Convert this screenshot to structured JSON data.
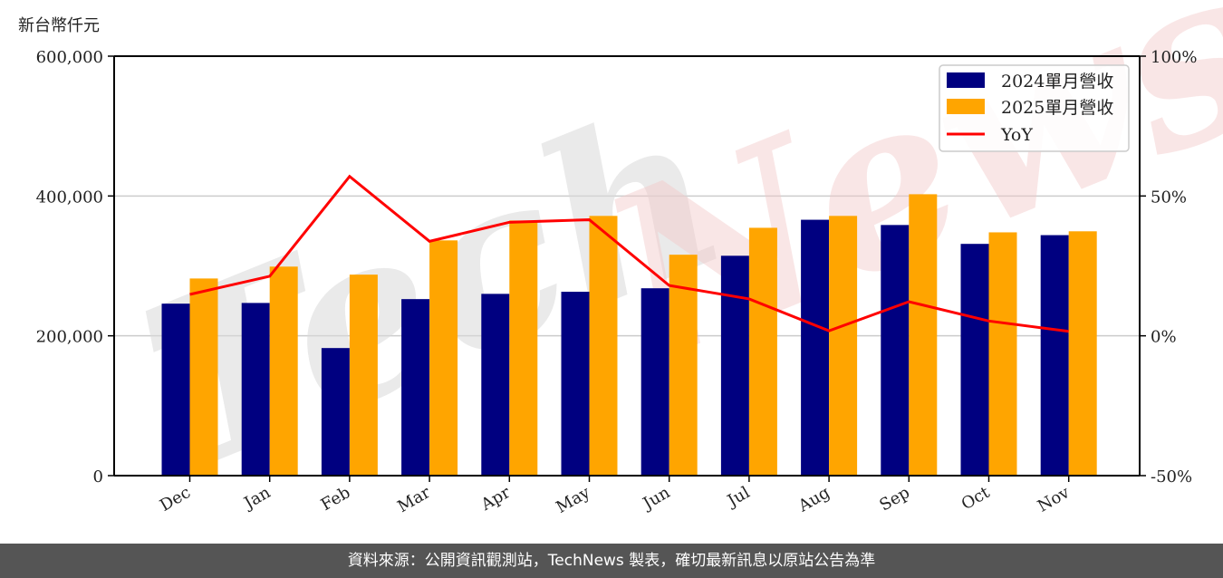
{
  "chart_data": {
    "type": "bar",
    "title": "",
    "unit_label": "新台幣仟元",
    "xlabel": "",
    "ylabel": "新台幣仟元",
    "categories": [
      "Dec",
      "Jan",
      "Feb",
      "Mar",
      "Apr",
      "May",
      "Jun",
      "Jul",
      "Aug",
      "Sep",
      "Oct",
      "Nov"
    ],
    "series": [
      {
        "name": "2024單月營收",
        "type": "bar",
        "axis": "left",
        "color": "#000080",
        "values": [
          246000,
          247000,
          182500,
          252500,
          260000,
          263000,
          268000,
          314500,
          366000,
          358500,
          331500,
          344000
        ]
      },
      {
        "name": "2025單月營收",
        "type": "bar",
        "axis": "left",
        "color": "#FFA500",
        "values": [
          282000,
          299000,
          287500,
          336500,
          365000,
          371500,
          316000,
          354500,
          371500,
          402500,
          348000,
          349500
        ]
      },
      {
        "name": "YoY",
        "type": "line",
        "axis": "right",
        "color": "#FF0000",
        "unit": "%",
        "values": [
          14.8,
          21.3,
          57.0,
          33.8,
          40.6,
          41.5,
          18.0,
          13.2,
          1.8,
          12.2,
          5.3,
          1.6
        ]
      }
    ],
    "ylim": [
      0,
      600000
    ],
    "y2lim": [
      -50,
      100
    ],
    "yticks": [
      0,
      200000,
      400000,
      600000
    ],
    "ytick_labels": [
      "0",
      "200,000",
      "400,000",
      "600,000"
    ],
    "y2ticks": [
      -50,
      0,
      50,
      100
    ],
    "y2tick_labels": [
      "-50%",
      "0%",
      "50%",
      "100%"
    ],
    "grid": "horizontal",
    "legend_position": "upper right",
    "legend": [
      "2024單月營收",
      "2025單月營收",
      "YoY"
    ]
  },
  "watermark": {
    "part1": "Tech",
    "part2": "News"
  },
  "footer": {
    "text": "資料來源：公開資訊觀測站，TechNews 製表，確切最新訊息以原站公告為準"
  }
}
